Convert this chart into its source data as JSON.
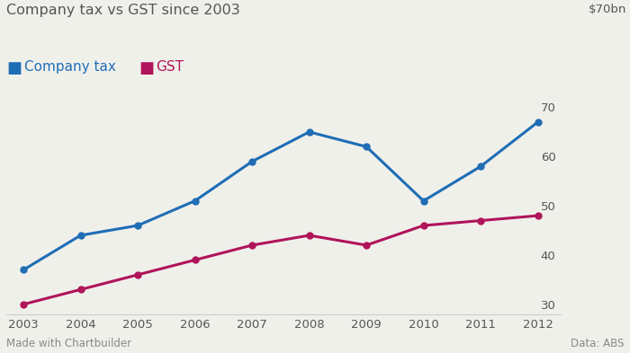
{
  "title": "Company tax vs GST since 2003",
  "ylabel_right": "$70bn",
  "footer_left": "Made with Chartbuilder",
  "footer_right": "Data: ABS",
  "company_tax": {
    "label": "Company tax",
    "color": "#1f6db5",
    "years": [
      2003,
      2004,
      2005,
      2006,
      2007,
      2008,
      2009,
      2010,
      2011,
      2012
    ],
    "values": [
      37,
      44,
      46,
      51,
      59,
      65,
      62,
      51,
      58,
      67
    ]
  },
  "gst": {
    "label": "GST",
    "color": "#b0145a",
    "years": [
      2003,
      2004,
      2005,
      2006,
      2007,
      2008,
      2009,
      2010,
      2011,
      2012
    ],
    "values": [
      30,
      33,
      36,
      39,
      42,
      44,
      42,
      46,
      47,
      48
    ]
  },
  "xlim": [
    2002.7,
    2012.4
  ],
  "ylim": [
    28,
    71
  ],
  "yticks": [
    30,
    40,
    50,
    60,
    70
  ],
  "xticks": [
    2003,
    2004,
    2005,
    2006,
    2007,
    2008,
    2009,
    2010,
    2011,
    2012
  ],
  "background_color": "#f0f0eb",
  "grid_color": "#cccccc",
  "title_fontsize": 11.5,
  "legend_fontsize": 11,
  "tick_fontsize": 9.5,
  "footer_fontsize": 8.5,
  "marker": "o",
  "markersize": 5,
  "linewidth": 2.2
}
